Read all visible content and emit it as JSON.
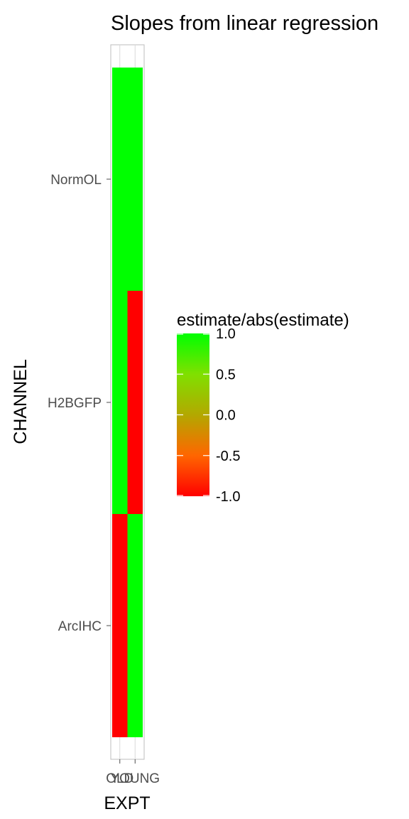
{
  "chart_data": {
    "type": "heatmap",
    "title": "Slopes from linear regression",
    "xlabel": "EXPT",
    "ylabel": "CHANNEL",
    "x_categories": [
      "OLD",
      "YOUNG"
    ],
    "y_categories": [
      "ArcIHC",
      "H2BGFP",
      "NormOL"
    ],
    "cells": [
      {
        "x": "OLD",
        "y": "NormOL",
        "value": 1.0
      },
      {
        "x": "YOUNG",
        "y": "NormOL",
        "value": 1.0
      },
      {
        "x": "OLD",
        "y": "H2BGFP",
        "value": 1.0
      },
      {
        "x": "YOUNG",
        "y": "H2BGFP",
        "value": -1.0
      },
      {
        "x": "OLD",
        "y": "ArcIHC",
        "value": -1.0
      },
      {
        "x": "YOUNG",
        "y": "ArcIHC",
        "value": 1.0
      }
    ],
    "legend": {
      "title": "estimate/abs(estimate)",
      "position": "right",
      "ticks": [
        "1.0",
        "0.5",
        "0.0",
        "-0.5",
        "-1.0"
      ],
      "range": [
        -1.0,
        1.0
      ],
      "low_color": "#ff0000",
      "high_color": "#00ff00"
    },
    "grid": true
  }
}
